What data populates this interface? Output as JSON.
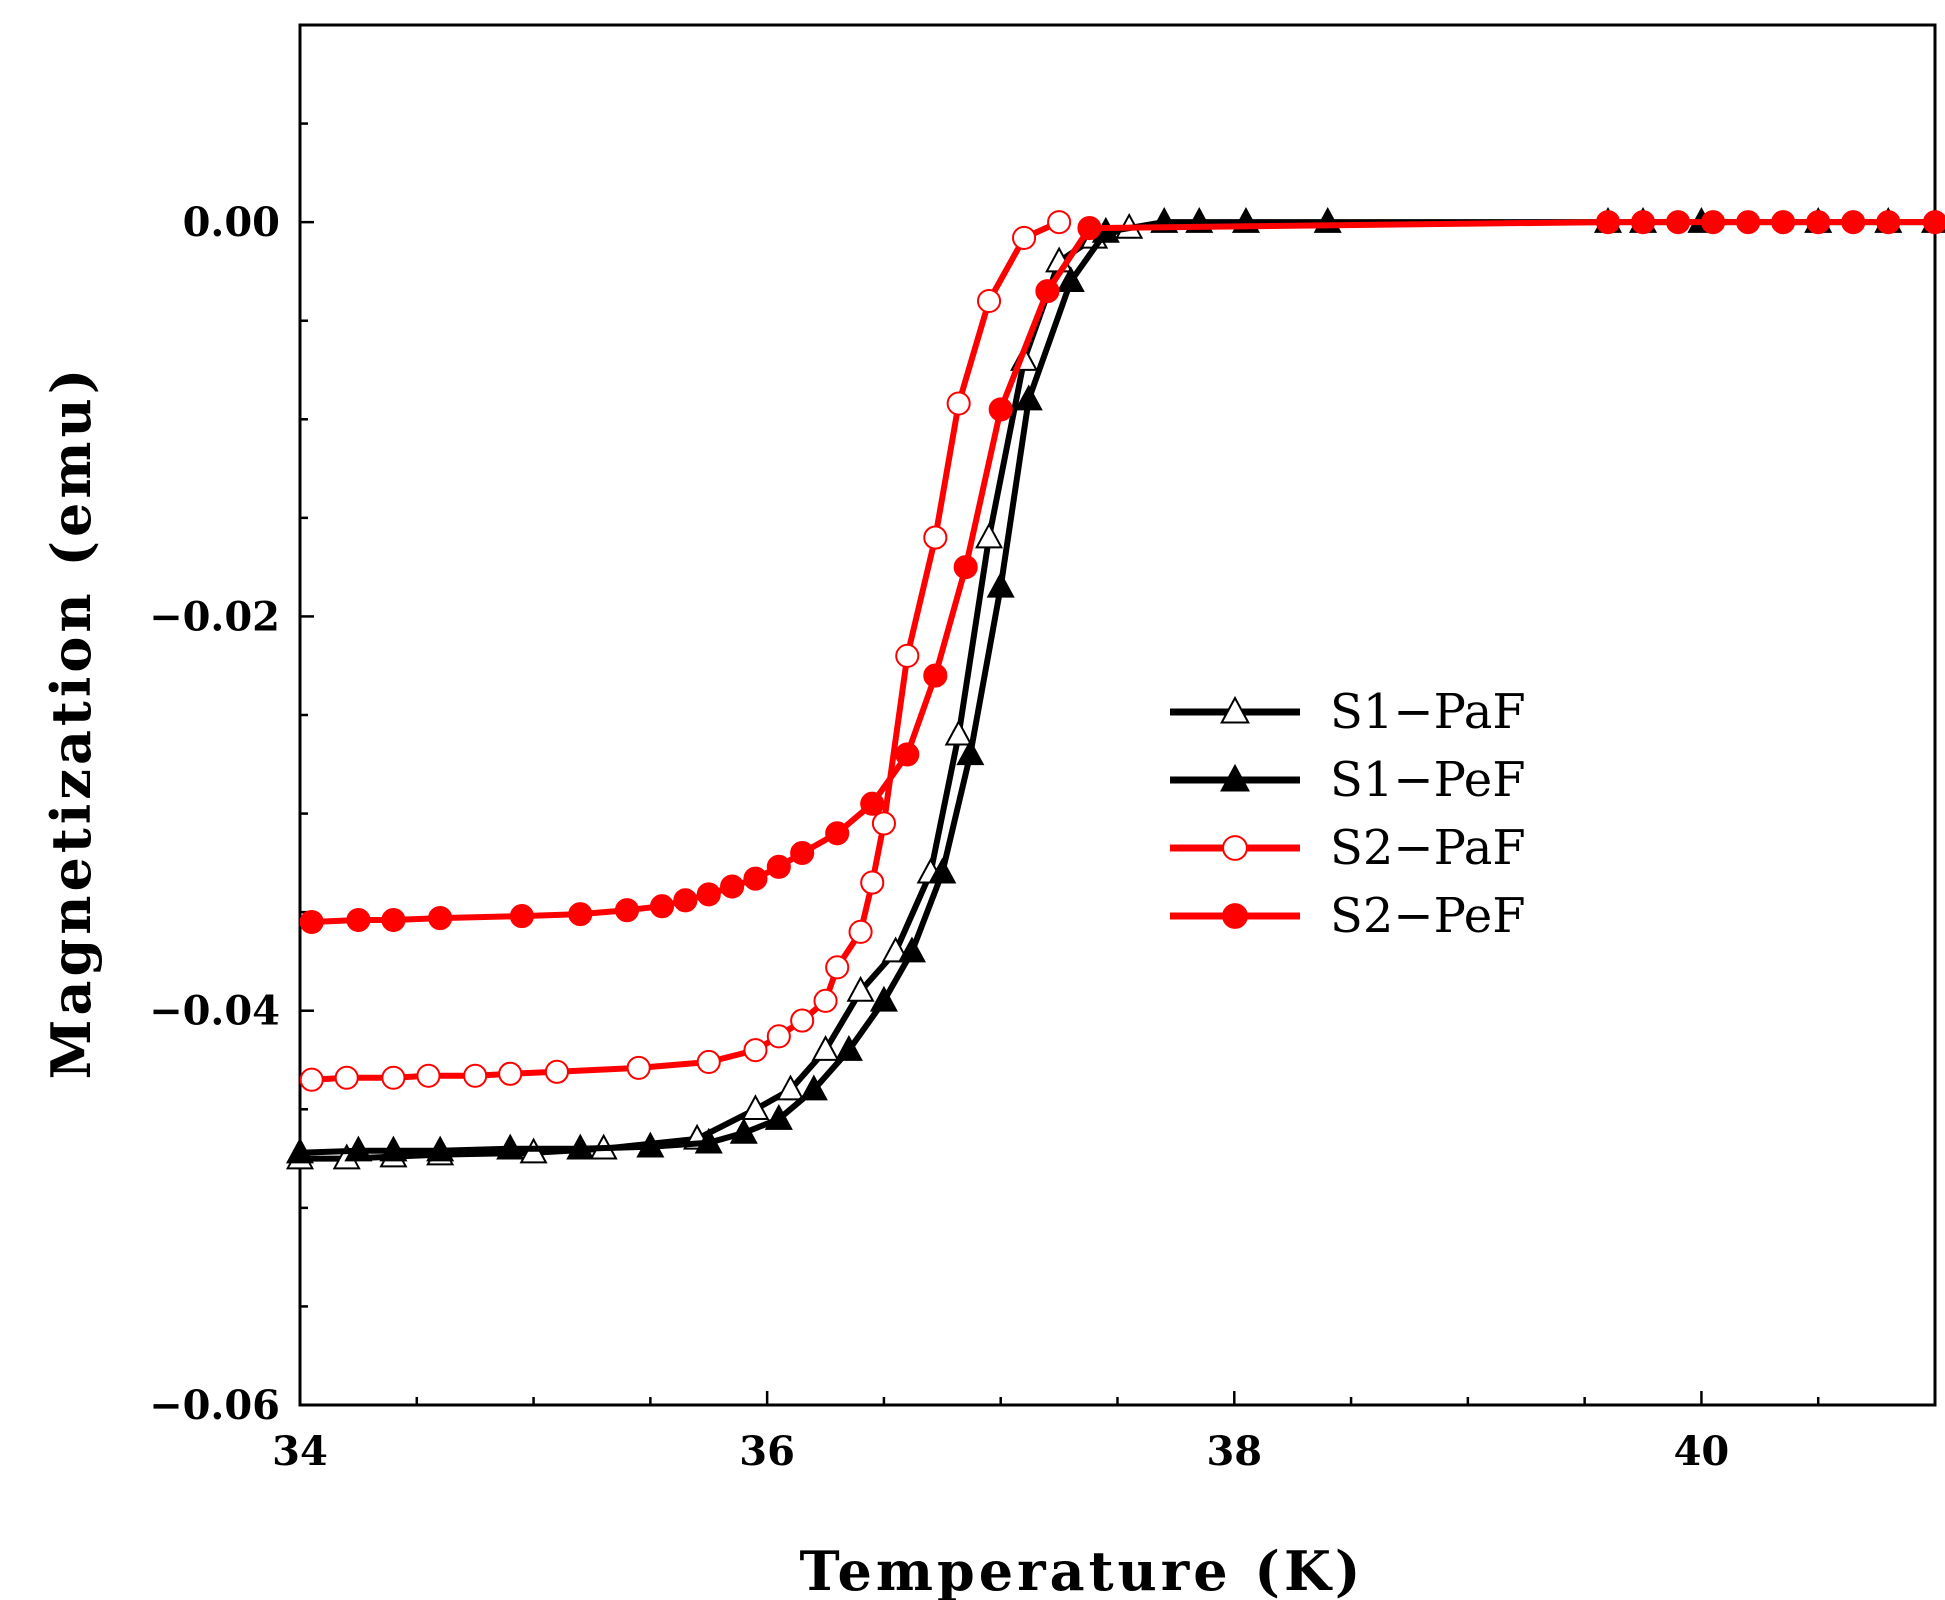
{
  "chart_data": {
    "type": "line",
    "title": "",
    "xlabel": "Temperature (K)",
    "ylabel": "Magnetization (emu)",
    "xlim": [
      34,
      41
    ],
    "ylim": [
      -0.06,
      0.01
    ],
    "x_ticks": [
      34,
      36,
      38,
      40
    ],
    "x_tick_labels": [
      "34",
      "36",
      "38",
      "40"
    ],
    "y_ticks": [
      0.0,
      -0.02,
      -0.04,
      -0.06
    ],
    "y_tick_labels": [
      "0.00",
      "-0.02",
      "-0.04",
      "-0.06"
    ],
    "legend_position": "center-right",
    "series": [
      {
        "name": "S1-PaF",
        "color": "#000000",
        "marker": "triangle-open",
        "x": [
          34.0,
          34.2,
          34.4,
          34.6,
          35.0,
          35.3,
          35.7,
          35.95,
          36.1,
          36.25,
          36.4,
          36.55,
          36.7,
          36.82,
          36.95,
          37.1,
          37.25,
          37.4,
          37.55
        ],
        "y": [
          -0.0475,
          -0.0475,
          -0.0474,
          -0.0473,
          -0.0472,
          -0.047,
          -0.0465,
          -0.045,
          -0.044,
          -0.042,
          -0.039,
          -0.037,
          -0.033,
          -0.026,
          -0.016,
          -0.007,
          -0.002,
          -0.0008,
          -0.0003
        ]
      },
      {
        "name": "S1-PeF",
        "color": "#000000",
        "marker": "triangle-filled",
        "x": [
          34.0,
          34.25,
          34.4,
          34.6,
          34.9,
          35.2,
          35.5,
          35.75,
          35.9,
          36.05,
          36.2,
          36.35,
          36.5,
          36.62,
          36.75,
          36.87,
          37.0,
          37.12,
          37.3,
          37.45,
          37.7,
          37.85,
          38.05,
          38.4,
          39.6,
          39.75,
          40.0,
          40.5,
          40.8,
          41.0
        ],
        "y": [
          -0.0472,
          -0.0471,
          -0.0471,
          -0.0471,
          -0.047,
          -0.047,
          -0.0469,
          -0.0467,
          -0.0462,
          -0.0455,
          -0.044,
          -0.042,
          -0.0395,
          -0.037,
          -0.033,
          -0.027,
          -0.0185,
          -0.009,
          -0.003,
          -0.0005,
          0.0,
          0.0,
          0.0,
          0.0,
          0.0,
          0.0,
          0.0,
          0.0,
          0.0,
          0.0
        ]
      },
      {
        "name": "S2-PaF",
        "color": "#ff0000",
        "marker": "circle-open",
        "x": [
          34.05,
          34.2,
          34.4,
          34.55,
          34.75,
          34.9,
          35.1,
          35.45,
          35.75,
          35.95,
          36.05,
          36.15,
          36.25,
          36.3,
          36.4,
          36.45,
          36.5,
          36.6,
          36.72,
          36.82,
          36.95,
          37.1,
          37.25
        ],
        "y": [
          -0.0435,
          -0.0434,
          -0.0434,
          -0.0433,
          -0.0433,
          -0.0432,
          -0.0431,
          -0.0429,
          -0.0426,
          -0.042,
          -0.0413,
          -0.0405,
          -0.0395,
          -0.0378,
          -0.036,
          -0.0335,
          -0.0305,
          -0.022,
          -0.016,
          -0.0092,
          -0.004,
          -0.0008,
          0.0
        ]
      },
      {
        "name": "S2-PeF",
        "color": "#ff0000",
        "marker": "circle-filled",
        "x": [
          34.05,
          34.25,
          34.4,
          34.6,
          34.95,
          35.2,
          35.4,
          35.55,
          35.65,
          35.75,
          35.85,
          35.95,
          36.05,
          36.15,
          36.3,
          36.45,
          36.6,
          36.72,
          36.85,
          37.0,
          37.2,
          37.38,
          39.6,
          39.75,
          39.9,
          40.05,
          40.2,
          40.35,
          40.5,
          40.65,
          40.8,
          41.0
        ],
        "y": [
          -0.0355,
          -0.0354,
          -0.0354,
          -0.0353,
          -0.0352,
          -0.0351,
          -0.0349,
          -0.0347,
          -0.0344,
          -0.0341,
          -0.0337,
          -0.0333,
          -0.0327,
          -0.032,
          -0.031,
          -0.0295,
          -0.027,
          -0.023,
          -0.0175,
          -0.0095,
          -0.0035,
          -0.0003,
          0.0,
          0.0,
          0.0,
          0.0,
          0.0,
          0.0,
          0.0,
          0.0,
          0.0,
          0.0
        ]
      }
    ]
  }
}
